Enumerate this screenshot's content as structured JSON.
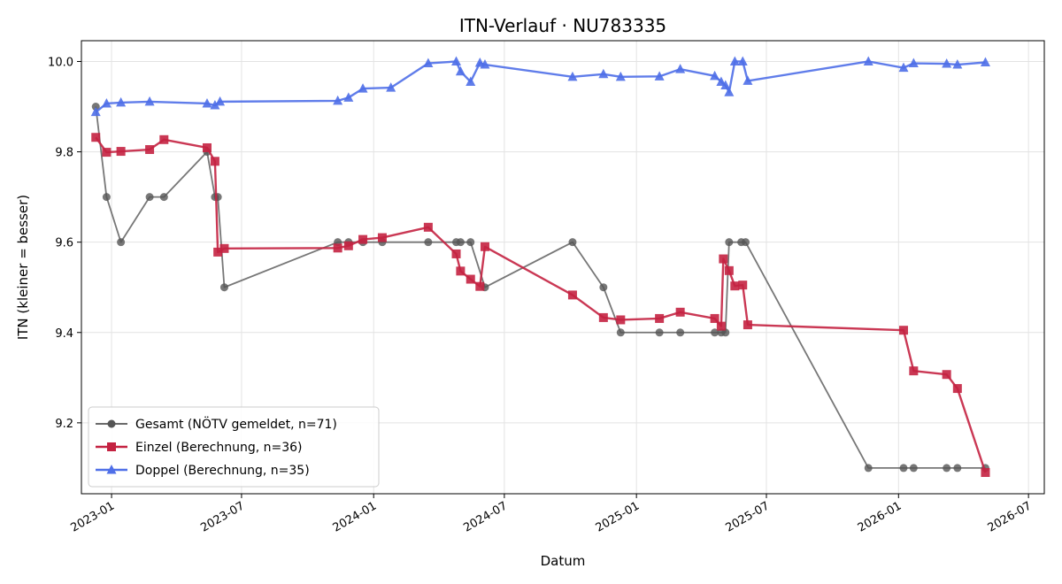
{
  "chart_data": {
    "type": "line",
    "title": "ITN-Verlauf · NU783335",
    "xlabel": "Datum",
    "ylabel": "ITN  (kleiner = besser)",
    "xlim": [
      "2022-11-20",
      "2026-07-23"
    ],
    "ylim": [
      9.043,
      10.046
    ],
    "grid": true,
    "legend_position": "bottom-left",
    "x_ticks": [
      "2023-01",
      "2023-07",
      "2024-01",
      "2024-07",
      "2025-01",
      "2025-07",
      "2026-01",
      "2026-07"
    ],
    "y_ticks": [
      "9.2",
      "9.4",
      "9.6",
      "9.8",
      "10.0"
    ],
    "series": [
      {
        "name": "Gesamt (NÖTV gemeldet, n=71)",
        "color": "#555555",
        "marker": "circle",
        "points": [
          [
            "2022-12-10",
            9.9
          ],
          [
            "2022-12-25",
            9.7
          ],
          [
            "2023-01-14",
            9.6
          ],
          [
            "2023-02-23",
            9.7
          ],
          [
            "2023-03-15",
            9.7
          ],
          [
            "2023-05-14",
            9.8
          ],
          [
            "2023-05-25",
            9.7
          ],
          [
            "2023-05-29",
            9.7
          ],
          [
            "2023-06-07",
            9.5
          ],
          [
            "2023-11-12",
            9.6
          ],
          [
            "2023-11-27",
            9.6
          ],
          [
            "2023-12-17",
            9.6
          ],
          [
            "2024-01-13",
            9.6
          ],
          [
            "2024-03-17",
            9.6
          ],
          [
            "2024-04-25",
            9.6
          ],
          [
            "2024-05-01",
            9.6
          ],
          [
            "2024-05-15",
            9.6
          ],
          [
            "2024-06-04",
            9.5
          ],
          [
            "2024-10-04",
            9.6
          ],
          [
            "2024-11-16",
            9.5
          ],
          [
            "2024-12-10",
            9.4
          ],
          [
            "2025-02-02",
            9.4
          ],
          [
            "2025-03-03",
            9.4
          ],
          [
            "2025-04-20",
            9.4
          ],
          [
            "2025-04-29",
            9.4
          ],
          [
            "2025-05-05",
            9.4
          ],
          [
            "2025-05-10",
            9.6
          ],
          [
            "2025-05-27",
            9.6
          ],
          [
            "2025-06-02",
            9.6
          ],
          [
            "2025-11-20",
            9.1
          ],
          [
            "2026-01-08",
            9.1
          ],
          [
            "2026-01-22",
            9.1
          ],
          [
            "2026-03-09",
            9.1
          ],
          [
            "2026-03-24",
            9.1
          ],
          [
            "2026-05-02",
            9.1
          ]
        ]
      },
      {
        "name": "Einzel (Berechnung, n=36)",
        "color": "#c42241",
        "marker": "square",
        "points": [
          [
            "2022-12-10",
            9.832
          ],
          [
            "2022-12-25",
            9.799
          ],
          [
            "2023-01-14",
            9.801
          ],
          [
            "2023-02-23",
            9.805
          ],
          [
            "2023-03-15",
            9.827
          ],
          [
            "2023-05-14",
            9.809
          ],
          [
            "2023-05-25",
            9.779
          ],
          [
            "2023-05-29",
            9.578
          ],
          [
            "2023-06-07",
            9.586
          ],
          [
            "2023-11-12",
            9.587
          ],
          [
            "2023-11-27",
            9.592
          ],
          [
            "2023-12-17",
            9.606
          ],
          [
            "2024-01-13",
            9.61
          ],
          [
            "2024-03-17",
            9.633
          ],
          [
            "2024-04-25",
            9.574
          ],
          [
            "2024-05-01",
            9.536
          ],
          [
            "2024-05-15",
            9.518
          ],
          [
            "2024-05-28",
            9.502
          ],
          [
            "2024-06-04",
            9.59
          ],
          [
            "2024-10-04",
            9.483
          ],
          [
            "2024-11-16",
            9.433
          ],
          [
            "2024-12-10",
            9.428
          ],
          [
            "2025-02-02",
            9.431
          ],
          [
            "2025-03-03",
            9.445
          ],
          [
            "2025-04-20",
            9.431
          ],
          [
            "2025-04-29",
            9.414
          ],
          [
            "2025-05-02",
            9.563
          ],
          [
            "2025-05-10",
            9.537
          ],
          [
            "2025-05-18",
            9.503
          ],
          [
            "2025-05-29",
            9.505
          ],
          [
            "2025-06-05",
            9.417
          ],
          [
            "2026-01-08",
            9.405
          ],
          [
            "2026-01-22",
            9.315
          ],
          [
            "2026-03-09",
            9.307
          ],
          [
            "2026-03-24",
            9.276
          ],
          [
            "2026-05-02",
            9.09
          ]
        ]
      },
      {
        "name": "Doppel (Berechnung, n=35)",
        "color": "#4f6fe8",
        "marker": "triangle",
        "points": [
          [
            "2022-12-10",
            9.888
          ],
          [
            "2022-12-25",
            9.907
          ],
          [
            "2023-01-14",
            9.909
          ],
          [
            "2023-02-23",
            9.911
          ],
          [
            "2023-05-14",
            9.907
          ],
          [
            "2023-05-25",
            9.903
          ],
          [
            "2023-06-01",
            9.911
          ],
          [
            "2023-11-12",
            9.913
          ],
          [
            "2023-11-27",
            9.92
          ],
          [
            "2023-12-17",
            9.94
          ],
          [
            "2024-01-25",
            9.942
          ],
          [
            "2024-03-17",
            9.996
          ],
          [
            "2024-04-25",
            10.0
          ],
          [
            "2024-05-01",
            9.978
          ],
          [
            "2024-05-15",
            9.955
          ],
          [
            "2024-05-28",
            9.997
          ],
          [
            "2024-06-04",
            9.993
          ],
          [
            "2024-10-04",
            9.966
          ],
          [
            "2024-11-16",
            9.972
          ],
          [
            "2024-12-10",
            9.966
          ],
          [
            "2025-02-02",
            9.967
          ],
          [
            "2025-03-03",
            9.983
          ],
          [
            "2025-04-20",
            9.968
          ],
          [
            "2025-04-29",
            9.955
          ],
          [
            "2025-05-05",
            9.947
          ],
          [
            "2025-05-10",
            9.932
          ],
          [
            "2025-05-18",
            10.0
          ],
          [
            "2025-05-29",
            10.0
          ],
          [
            "2025-06-05",
            9.957
          ],
          [
            "2025-11-20",
            10.0
          ],
          [
            "2026-01-08",
            9.986
          ],
          [
            "2026-01-22",
            9.996
          ],
          [
            "2026-03-09",
            9.995
          ],
          [
            "2026-03-24",
            9.993
          ],
          [
            "2026-05-02",
            9.998
          ]
        ]
      }
    ]
  }
}
